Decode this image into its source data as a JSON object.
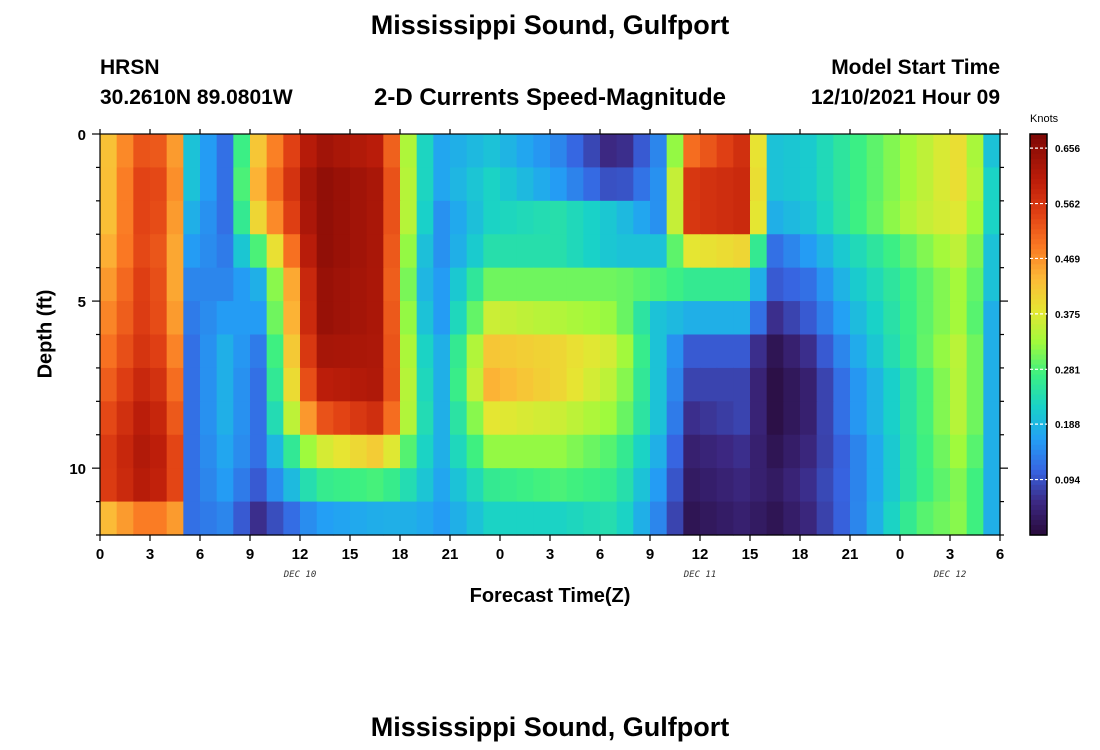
{
  "title": "Mississippi Sound, Gulfport",
  "footer_title": "Mississippi Sound, Gulfport",
  "station_id": "HRSN",
  "station_coords": "30.2610N  89.0801W",
  "subtitle": "2-D Currents Speed-Magnitude",
  "model_start_label": "Model Start Time",
  "model_start_value": "12/10/2021 Hour 09",
  "chart_data": {
    "type": "heatmap",
    "title": "2-D Currents Speed-Magnitude",
    "xlabel": "Forecast Time(Z)",
    "ylabel": "Depth (ft)",
    "x_range_hours": [
      0,
      54
    ],
    "y_range_ft": [
      0,
      12
    ],
    "x_ticks": [
      {
        "hour": 0,
        "label": "0"
      },
      {
        "hour": 3,
        "label": "3"
      },
      {
        "hour": 6,
        "label": "6"
      },
      {
        "hour": 9,
        "label": "9"
      },
      {
        "hour": 12,
        "label": "12"
      },
      {
        "hour": 15,
        "label": "15"
      },
      {
        "hour": 18,
        "label": "18"
      },
      {
        "hour": 21,
        "label": "21"
      },
      {
        "hour": 24,
        "label": "0"
      },
      {
        "hour": 27,
        "label": "3"
      },
      {
        "hour": 30,
        "label": "6"
      },
      {
        "hour": 33,
        "label": "9"
      },
      {
        "hour": 36,
        "label": "12"
      },
      {
        "hour": 39,
        "label": "15"
      },
      {
        "hour": 42,
        "label": "18"
      },
      {
        "hour": 45,
        "label": "21"
      },
      {
        "hour": 48,
        "label": "0"
      },
      {
        "hour": 51,
        "label": "3"
      },
      {
        "hour": 54,
        "label": "6"
      }
    ],
    "date_labels": [
      {
        "hour": 12,
        "label": "DEC 10"
      },
      {
        "hour": 36,
        "label": "DEC 11"
      },
      {
        "hour": 51,
        "label": "DEC 12"
      }
    ],
    "y_ticks": [
      {
        "depth": 0,
        "label": "0"
      },
      {
        "depth": 5,
        "label": "5"
      },
      {
        "depth": 10,
        "label": "10"
      }
    ],
    "colorbar": {
      "label": "Knots",
      "min": 0,
      "max": 0.68,
      "ticks": [
        "0.656",
        "0.562",
        "0.469",
        "0.375",
        "0.281",
        "0.188",
        "0.094"
      ],
      "tick_values": [
        0.656,
        0.562,
        0.469,
        0.375,
        0.281,
        0.188,
        0.094
      ]
    },
    "depth_layers_ft": [
      0.5,
      1.5,
      2.5,
      3.5,
      4.5,
      5.5,
      6.5,
      7.5,
      8.5,
      9.5,
      10.5,
      11.5
    ],
    "key_time_hours": [
      0,
      3,
      4.5,
      5.5,
      7.5,
      9.5,
      13,
      17,
      19,
      20.5,
      23.5,
      27.5,
      31,
      33.5,
      35.5,
      38.5,
      40.5,
      42.5,
      45,
      49,
      52,
      53.5,
      54
    ],
    "speed_knots": [
      [
        0.4,
        0.55,
        0.46,
        0.2,
        0.12,
        0.42,
        0.64,
        0.6,
        0.25,
        0.17,
        0.2,
        0.14,
        0.04,
        0.14,
        0.5,
        0.57,
        0.2,
        0.21,
        0.26,
        0.34,
        0.4,
        0.2,
        0.18
      ],
      [
        0.4,
        0.57,
        0.47,
        0.2,
        0.12,
        0.44,
        0.66,
        0.62,
        0.25,
        0.17,
        0.22,
        0.16,
        0.08,
        0.15,
        0.56,
        0.58,
        0.2,
        0.21,
        0.26,
        0.34,
        0.4,
        0.22,
        0.18
      ],
      [
        0.4,
        0.57,
        0.46,
        0.18,
        0.12,
        0.4,
        0.66,
        0.62,
        0.25,
        0.15,
        0.22,
        0.24,
        0.2,
        0.15,
        0.56,
        0.58,
        0.18,
        0.2,
        0.26,
        0.35,
        0.38,
        0.22,
        0.18
      ],
      [
        0.42,
        0.56,
        0.45,
        0.16,
        0.13,
        0.28,
        0.66,
        0.62,
        0.22,
        0.15,
        0.24,
        0.24,
        0.2,
        0.2,
        0.38,
        0.4,
        0.12,
        0.16,
        0.22,
        0.3,
        0.36,
        0.2,
        0.16
      ],
      [
        0.44,
        0.57,
        0.45,
        0.14,
        0.14,
        0.18,
        0.65,
        0.62,
        0.2,
        0.16,
        0.3,
        0.3,
        0.3,
        0.28,
        0.26,
        0.26,
        0.1,
        0.12,
        0.2,
        0.28,
        0.34,
        0.2,
        0.16
      ],
      [
        0.46,
        0.57,
        0.46,
        0.13,
        0.16,
        0.16,
        0.65,
        0.62,
        0.22,
        0.16,
        0.36,
        0.34,
        0.32,
        0.2,
        0.18,
        0.18,
        0.06,
        0.1,
        0.18,
        0.28,
        0.34,
        0.18,
        0.14
      ],
      [
        0.48,
        0.58,
        0.48,
        0.12,
        0.18,
        0.13,
        0.63,
        0.62,
        0.24,
        0.18,
        0.42,
        0.4,
        0.36,
        0.2,
        0.1,
        0.1,
        0.02,
        0.06,
        0.16,
        0.28,
        0.36,
        0.18,
        0.14
      ],
      [
        0.5,
        0.6,
        0.5,
        0.12,
        0.18,
        0.12,
        0.6,
        0.62,
        0.25,
        0.18,
        0.44,
        0.4,
        0.34,
        0.2,
        0.08,
        0.08,
        0.01,
        0.04,
        0.14,
        0.26,
        0.36,
        0.18,
        0.14
      ],
      [
        0.52,
        0.62,
        0.52,
        0.12,
        0.18,
        0.12,
        0.52,
        0.58,
        0.26,
        0.18,
        0.38,
        0.36,
        0.32,
        0.2,
        0.06,
        0.08,
        0.01,
        0.04,
        0.14,
        0.26,
        0.36,
        0.18,
        0.14
      ],
      [
        0.54,
        0.63,
        0.54,
        0.12,
        0.17,
        0.12,
        0.36,
        0.42,
        0.24,
        0.18,
        0.32,
        0.32,
        0.28,
        0.18,
        0.04,
        0.06,
        0.02,
        0.05,
        0.12,
        0.26,
        0.34,
        0.18,
        0.14
      ],
      [
        0.54,
        0.62,
        0.54,
        0.12,
        0.16,
        0.1,
        0.26,
        0.28,
        0.22,
        0.17,
        0.26,
        0.28,
        0.26,
        0.16,
        0.03,
        0.05,
        0.03,
        0.06,
        0.12,
        0.26,
        0.32,
        0.18,
        0.14
      ],
      [
        0.42,
        0.5,
        0.46,
        0.12,
        0.14,
        0.06,
        0.16,
        0.18,
        0.18,
        0.16,
        0.22,
        0.22,
        0.24,
        0.14,
        0.02,
        0.04,
        0.02,
        0.05,
        0.12,
        0.28,
        0.32,
        0.18,
        0.14
      ]
    ]
  }
}
